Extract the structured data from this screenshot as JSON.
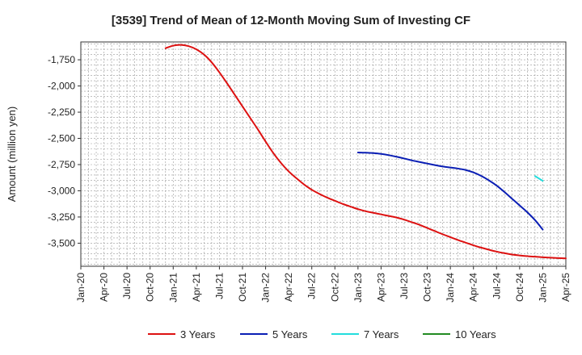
{
  "chart_data": {
    "type": "line",
    "title": "[3539]  Trend of Mean of 12-Month Moving Sum of Investing CF",
    "xlabel": "",
    "ylabel": "Amount (million yen)",
    "ylim": [
      -3720,
      -1580
    ],
    "y_ticks": [
      -1750,
      -2000,
      -2250,
      -2500,
      -2750,
      -3000,
      -3250,
      -3500
    ],
    "y_tick_labels": [
      "-1,750",
      "-2,000",
      "-2,250",
      "-2,500",
      "-2,750",
      "-3,000",
      "-3,250",
      "-3,500"
    ],
    "x_ticks": [
      "Jan-20",
      "Apr-20",
      "Jul-20",
      "Oct-20",
      "Jan-21",
      "Apr-21",
      "Jul-21",
      "Oct-21",
      "Jan-22",
      "Apr-22",
      "Jul-22",
      "Oct-22",
      "Jan-23",
      "Apr-23",
      "Jul-23",
      "Oct-23",
      "Jan-24",
      "Apr-24",
      "Jul-24",
      "Oct-24",
      "Jan-25",
      "Apr-25"
    ],
    "x_range_months": [
      0,
      63
    ],
    "grid": true,
    "legend_position": "bottom",
    "series": [
      {
        "name": "3 Years",
        "color": "#dd1111",
        "points": [
          [
            11,
            -1640
          ],
          [
            12,
            -1615
          ],
          [
            13,
            -1608
          ],
          [
            14,
            -1620
          ],
          [
            15,
            -1650
          ],
          [
            16,
            -1700
          ],
          [
            17,
            -1775
          ],
          [
            18,
            -1870
          ],
          [
            19,
            -1975
          ],
          [
            20,
            -2085
          ],
          [
            21,
            -2195
          ],
          [
            22,
            -2305
          ],
          [
            23,
            -2415
          ],
          [
            24,
            -2530
          ],
          [
            25,
            -2640
          ],
          [
            26,
            -2735
          ],
          [
            27,
            -2815
          ],
          [
            28,
            -2880
          ],
          [
            29,
            -2940
          ],
          [
            30,
            -2990
          ],
          [
            31,
            -3030
          ],
          [
            32,
            -3065
          ],
          [
            33,
            -3095
          ],
          [
            34,
            -3125
          ],
          [
            35,
            -3150
          ],
          [
            36,
            -3175
          ],
          [
            37,
            -3195
          ],
          [
            38,
            -3210
          ],
          [
            39,
            -3225
          ],
          [
            40,
            -3240
          ],
          [
            41,
            -3255
          ],
          [
            42,
            -3275
          ],
          [
            43,
            -3300
          ],
          [
            44,
            -3325
          ],
          [
            45,
            -3355
          ],
          [
            46,
            -3385
          ],
          [
            47,
            -3415
          ],
          [
            48,
            -3442
          ],
          [
            49,
            -3470
          ],
          [
            50,
            -3495
          ],
          [
            51,
            -3520
          ],
          [
            52,
            -3542
          ],
          [
            53,
            -3562
          ],
          [
            54,
            -3580
          ],
          [
            55,
            -3595
          ],
          [
            56,
            -3608
          ],
          [
            57,
            -3617
          ],
          [
            58,
            -3624
          ],
          [
            59,
            -3629
          ],
          [
            60,
            -3634
          ],
          [
            61,
            -3638
          ],
          [
            62,
            -3642
          ],
          [
            63,
            -3645
          ]
        ]
      },
      {
        "name": "5 Years",
        "color": "#0a1eb4",
        "points": [
          [
            36,
            -2635
          ],
          [
            37,
            -2637
          ],
          [
            38,
            -2640
          ],
          [
            39,
            -2648
          ],
          [
            40,
            -2660
          ],
          [
            41,
            -2675
          ],
          [
            42,
            -2692
          ],
          [
            43,
            -2710
          ],
          [
            44,
            -2725
          ],
          [
            45,
            -2740
          ],
          [
            46,
            -2755
          ],
          [
            47,
            -2768
          ],
          [
            48,
            -2778
          ],
          [
            49,
            -2788
          ],
          [
            50,
            -2802
          ],
          [
            51,
            -2825
          ],
          [
            52,
            -2858
          ],
          [
            53,
            -2900
          ],
          [
            54,
            -2950
          ],
          [
            55,
            -3010
          ],
          [
            56,
            -3075
          ],
          [
            57,
            -3140
          ],
          [
            58,
            -3205
          ],
          [
            59,
            -3280
          ],
          [
            60,
            -3370
          ]
        ]
      },
      {
        "name": "7 Years",
        "color": "#22dddd",
        "points": [
          [
            59,
            -2860
          ],
          [
            60,
            -2905
          ]
        ]
      },
      {
        "name": "10 Years",
        "color": "#228b22",
        "points": []
      }
    ]
  }
}
